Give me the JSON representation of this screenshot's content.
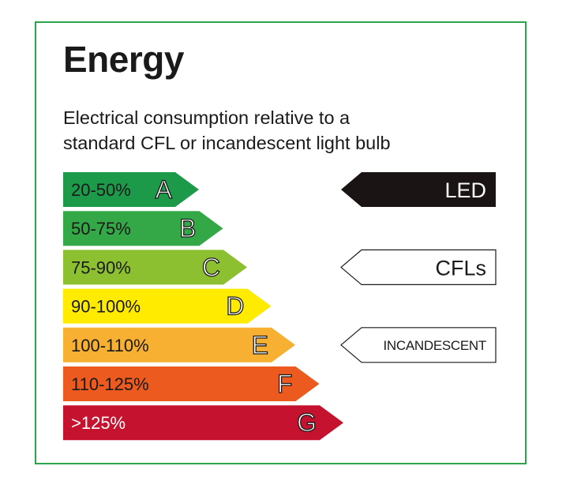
{
  "title": "Energy",
  "subtitle_lines": [
    "Electrical consumption relative to a",
    "standard CFL or incandescent light bulb"
  ],
  "bands": [
    {
      "letter": "A",
      "range": "20-50%",
      "color": "#1c9a4a",
      "text_color": "#1a1a1a"
    },
    {
      "letter": "B",
      "range": "50-75%",
      "color": "#34a847",
      "text_color": "#1a1a1a"
    },
    {
      "letter": "C",
      "range": "75-90%",
      "color": "#8dc031",
      "text_color": "#1a1a1a"
    },
    {
      "letter": "D",
      "range": "90-100%",
      "color": "#ffeb00",
      "text_color": "#1a1a1a"
    },
    {
      "letter": "E",
      "range": "100-110%",
      "color": "#f7b032",
      "text_color": "#1a1a1a"
    },
    {
      "letter": "F",
      "range": "110-125%",
      "color": "#ec5a1f",
      "text_color": "#1a1a1a"
    },
    {
      "letter": "G",
      "range": ">125%",
      "color": "#c4122f",
      "text_color": "#ffffff"
    }
  ],
  "indicators": [
    {
      "label": "LED",
      "band": "A",
      "style": "filled",
      "fill": "#1a1414",
      "text_color": "#ffffff"
    },
    {
      "label": "CFLs",
      "band": "C",
      "style": "outline",
      "fill": "#ffffff",
      "text_color": "#1a1a1a"
    },
    {
      "label": "INCANDESCENT",
      "band": "E",
      "style": "outline",
      "fill": "#ffffff",
      "text_color": "#1a1a1a"
    }
  ],
  "colors": {
    "frame": "#2ea44a",
    "text": "#1a1a1a"
  }
}
